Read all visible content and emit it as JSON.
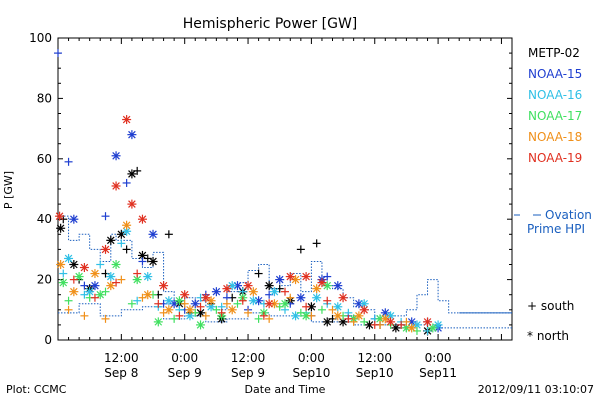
{
  "footer": {
    "plot_credit": "Plot: CCMC",
    "timestamp": "2012/09/11 03:10:07"
  },
  "chart_data": {
    "type": "scatter",
    "title": "Hemispheric Power [GW]",
    "xlabel": "Date and Time",
    "ylabel": "P [GW]",
    "ylim": [
      0,
      100
    ],
    "xlim_hours": [
      0,
      86
    ],
    "x_ticks": [
      {
        "hour": 12,
        "time": "12:00",
        "date": "Sep 8"
      },
      {
        "hour": 24,
        "time": "0:00",
        "date": "Sep 9"
      },
      {
        "hour": 36,
        "time": "12:00",
        "date": "Sep 9"
      },
      {
        "hour": 48,
        "time": "0:00",
        "date": "Sep10"
      },
      {
        "hour": 60,
        "time": "12:00",
        "date": "Sep10"
      },
      {
        "hour": 72,
        "time": "0:00",
        "date": "Sep11"
      }
    ],
    "y_ticks": [
      0,
      20,
      40,
      60,
      80,
      100
    ],
    "legend_position": "right",
    "marker_legend": [
      {
        "symbol": "+",
        "label": "south"
      },
      {
        "symbol": "*",
        "label": "north"
      }
    ],
    "series": [
      {
        "name": "METP-02",
        "color": "#000000",
        "south": [
          [
            1,
            40
          ],
          [
            4,
            20
          ],
          [
            9,
            22
          ],
          [
            13,
            30
          ],
          [
            15,
            56
          ],
          [
            17,
            27
          ],
          [
            19,
            15
          ],
          [
            21,
            35
          ],
          [
            25,
            9
          ],
          [
            29,
            12
          ],
          [
            33,
            14
          ],
          [
            38,
            22
          ],
          [
            42,
            17
          ],
          [
            46,
            30
          ],
          [
            49,
            32
          ],
          [
            52,
            7
          ],
          [
            56,
            7
          ],
          [
            61,
            5
          ],
          [
            66,
            4
          ]
        ],
        "north": [
          [
            0.5,
            37
          ],
          [
            3,
            25
          ],
          [
            6,
            17
          ],
          [
            10,
            33
          ],
          [
            12,
            35
          ],
          [
            14,
            55
          ],
          [
            16,
            28
          ],
          [
            18,
            26
          ],
          [
            23,
            12
          ],
          [
            27,
            9
          ],
          [
            31,
            7
          ],
          [
            35,
            16
          ],
          [
            40,
            18
          ],
          [
            44,
            13
          ],
          [
            48,
            11
          ],
          [
            51,
            6
          ],
          [
            54,
            6
          ],
          [
            59,
            5
          ],
          [
            64,
            4
          ],
          [
            70,
            3
          ]
        ]
      },
      {
        "name": "NOAA-15",
        "color": "#1f3fd0",
        "south": [
          [
            0,
            95
          ],
          [
            2,
            59
          ],
          [
            5,
            18
          ],
          [
            9,
            41
          ],
          [
            13,
            52
          ],
          [
            16,
            26
          ],
          [
            20,
            12
          ],
          [
            24,
            10
          ],
          [
            28,
            15
          ],
          [
            32,
            14
          ],
          [
            36,
            10
          ],
          [
            40,
            15
          ],
          [
            44,
            12
          ],
          [
            48,
            8
          ],
          [
            51,
            21
          ],
          [
            55,
            8
          ],
          [
            60,
            7
          ],
          [
            65,
            5
          ],
          [
            70,
            6
          ]
        ],
        "north": [
          [
            3,
            40
          ],
          [
            7,
            18
          ],
          [
            11,
            61
          ],
          [
            14,
            68
          ],
          [
            18,
            35
          ],
          [
            22,
            12
          ],
          [
            26,
            12
          ],
          [
            30,
            16
          ],
          [
            34,
            18
          ],
          [
            38,
            13
          ],
          [
            42,
            20
          ],
          [
            46,
            14
          ],
          [
            50,
            20
          ],
          [
            53,
            18
          ],
          [
            57,
            12
          ],
          [
            62,
            9
          ],
          [
            67,
            6
          ],
          [
            72,
            4
          ]
        ]
      },
      {
        "name": "NOAA-16",
        "color": "#30c0e6",
        "south": [
          [
            1,
            22
          ],
          [
            5,
            15
          ],
          [
            8,
            25
          ],
          [
            12,
            32
          ],
          [
            15,
            13
          ],
          [
            19,
            11
          ],
          [
            23,
            10
          ],
          [
            27,
            14
          ],
          [
            31,
            11
          ],
          [
            35,
            16
          ],
          [
            39,
            12
          ],
          [
            43,
            10
          ],
          [
            47,
            9
          ],
          [
            51,
            12
          ],
          [
            55,
            9
          ],
          [
            60,
            7
          ],
          [
            65,
            6
          ],
          [
            70,
            3
          ]
        ],
        "north": [
          [
            2,
            27
          ],
          [
            6,
            16
          ],
          [
            10,
            21
          ],
          [
            13,
            36
          ],
          [
            17,
            21
          ],
          [
            21,
            13
          ],
          [
            25,
            8
          ],
          [
            29,
            11
          ],
          [
            33,
            18
          ],
          [
            37,
            13
          ],
          [
            41,
            16
          ],
          [
            45,
            8
          ],
          [
            49,
            14
          ],
          [
            53,
            11
          ],
          [
            58,
            12
          ],
          [
            63,
            8
          ],
          [
            68,
            5
          ],
          [
            72,
            5
          ]
        ]
      },
      {
        "name": "NOAA-17",
        "color": "#40e060",
        "south": [
          [
            2,
            13
          ],
          [
            6,
            14
          ],
          [
            9,
            16
          ],
          [
            14,
            12
          ],
          [
            18,
            15
          ],
          [
            22,
            7
          ],
          [
            26,
            9
          ],
          [
            30,
            10
          ],
          [
            34,
            12
          ],
          [
            38,
            7
          ],
          [
            42,
            11
          ],
          [
            46,
            9
          ],
          [
            50,
            10
          ],
          [
            54,
            8
          ],
          [
            58,
            6
          ],
          [
            63,
            5
          ],
          [
            68,
            3
          ]
        ],
        "north": [
          [
            1,
            19
          ],
          [
            4,
            21
          ],
          [
            8,
            15
          ],
          [
            11,
            25
          ],
          [
            15,
            20
          ],
          [
            19,
            6
          ],
          [
            23,
            13
          ],
          [
            27,
            5
          ],
          [
            31,
            8
          ],
          [
            35,
            14
          ],
          [
            39,
            9
          ],
          [
            43,
            12
          ],
          [
            47,
            8
          ],
          [
            51,
            18
          ],
          [
            56,
            7
          ],
          [
            61,
            7
          ],
          [
            66,
            4
          ],
          [
            71,
            4
          ]
        ]
      },
      {
        "name": "NOAA-18",
        "color": "#f0901a",
        "south": [
          [
            2,
            10
          ],
          [
            5,
            8
          ],
          [
            9,
            7
          ],
          [
            12,
            20
          ],
          [
            16,
            14
          ],
          [
            20,
            9
          ],
          [
            24,
            12
          ],
          [
            28,
            8
          ],
          [
            32,
            12
          ],
          [
            36,
            9
          ],
          [
            40,
            7
          ],
          [
            44,
            14
          ],
          [
            48,
            8
          ],
          [
            52,
            10
          ],
          [
            56,
            6
          ],
          [
            61,
            5
          ],
          [
            66,
            6
          ]
        ],
        "north": [
          [
            0.5,
            25
          ],
          [
            3,
            16
          ],
          [
            7,
            22
          ],
          [
            10,
            18
          ],
          [
            13,
            38
          ],
          [
            17,
            15
          ],
          [
            21,
            10
          ],
          [
            25,
            10
          ],
          [
            29,
            13
          ],
          [
            33,
            10
          ],
          [
            37,
            16
          ],
          [
            41,
            12
          ],
          [
            45,
            20
          ],
          [
            49,
            17
          ],
          [
            53,
            8
          ],
          [
            57,
            8
          ],
          [
            62,
            7
          ],
          [
            67,
            4
          ]
        ]
      },
      {
        "name": "NOAA-19",
        "color": "#e03020",
        "south": [
          [
            3,
            20
          ],
          [
            7,
            14
          ],
          [
            11,
            19
          ],
          [
            15,
            22
          ],
          [
            19,
            12
          ],
          [
            23,
            8
          ],
          [
            27,
            11
          ],
          [
            31,
            9
          ],
          [
            35,
            13
          ],
          [
            39,
            8
          ],
          [
            43,
            16
          ],
          [
            47,
            11
          ],
          [
            51,
            13
          ],
          [
            55,
            7
          ],
          [
            60,
            5
          ],
          [
            65,
            5
          ]
        ],
        "north": [
          [
            0.3,
            41
          ],
          [
            5,
            24
          ],
          [
            9,
            30
          ],
          [
            11,
            51
          ],
          [
            13,
            73
          ],
          [
            14,
            45
          ],
          [
            16,
            40
          ],
          [
            20,
            18
          ],
          [
            24,
            15
          ],
          [
            28,
            14
          ],
          [
            32,
            17
          ],
          [
            36,
            18
          ],
          [
            40,
            12
          ],
          [
            44,
            21
          ],
          [
            47,
            21
          ],
          [
            50,
            19
          ],
          [
            54,
            14
          ],
          [
            58,
            10
          ],
          [
            63,
            6
          ],
          [
            70,
            6
          ]
        ]
      }
    ],
    "ovation": {
      "name": "Ovation Prime HPI",
      "color": "#1a5fbf",
      "steps": [
        [
          0,
          41
        ],
        [
          2,
          33
        ],
        [
          4,
          35
        ],
        [
          6,
          30
        ],
        [
          8,
          26
        ],
        [
          10,
          35
        ],
        [
          11,
          33
        ],
        [
          12,
          33
        ],
        [
          14,
          27
        ],
        [
          16,
          24
        ],
        [
          18,
          29
        ],
        [
          20,
          16
        ],
        [
          22,
          13
        ],
        [
          24,
          14
        ],
        [
          26,
          13
        ],
        [
          28,
          11
        ],
        [
          30,
          10
        ],
        [
          32,
          16
        ],
        [
          34,
          19
        ],
        [
          36,
          23
        ],
        [
          38,
          25
        ],
        [
          40,
          17
        ],
        [
          42,
          18
        ],
        [
          44,
          22
        ],
        [
          46,
          16
        ],
        [
          48,
          26
        ],
        [
          50,
          18
        ],
        [
          52,
          17
        ],
        [
          54,
          14
        ],
        [
          56,
          11
        ],
        [
          58,
          10
        ],
        [
          60,
          8
        ],
        [
          62,
          8
        ],
        [
          64,
          8
        ],
        [
          66,
          10
        ],
        [
          68,
          15
        ],
        [
          70,
          20
        ],
        [
          72,
          13
        ],
        [
          74,
          9
        ],
        [
          78,
          9
        ],
        [
          86,
          9
        ]
      ],
      "base": [
        [
          0,
          9
        ],
        [
          4,
          12
        ],
        [
          8,
          8
        ],
        [
          12,
          10
        ],
        [
          16,
          11
        ],
        [
          20,
          7
        ],
        [
          24,
          8
        ],
        [
          28,
          6
        ],
        [
          32,
          7
        ],
        [
          36,
          9
        ],
        [
          40,
          8
        ],
        [
          44,
          8
        ],
        [
          48,
          6
        ],
        [
          52,
          6
        ],
        [
          56,
          5
        ],
        [
          60,
          5
        ],
        [
          64,
          5
        ],
        [
          68,
          5
        ],
        [
          72,
          4
        ],
        [
          76,
          4
        ],
        [
          86,
          4
        ]
      ]
    }
  }
}
